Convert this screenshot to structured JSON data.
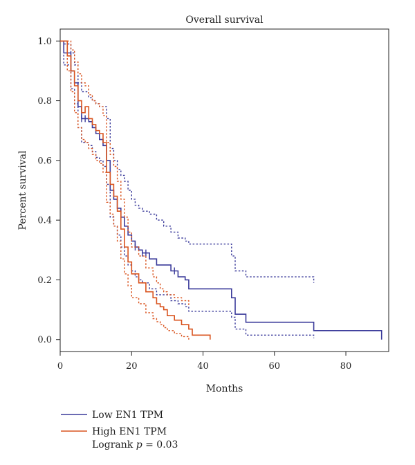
{
  "chart_data": {
    "type": "line",
    "subtype": "kaplan-meier",
    "title": "Overall survival",
    "xlabel": "Months",
    "ylabel": "Percent survival",
    "xlim": [
      0,
      92
    ],
    "ylim": [
      -0.04,
      1.04
    ],
    "xticks": [
      0,
      20,
      40,
      60,
      80
    ],
    "yticks": [
      0.0,
      0.2,
      0.4,
      0.6,
      0.8,
      1.0
    ],
    "xtick_labels": [
      "0",
      "20",
      "40",
      "60",
      "80"
    ],
    "ytick_labels": [
      "0.0",
      "0.2",
      "0.4",
      "0.6",
      "0.8",
      "1.0"
    ],
    "grid": false,
    "legend_position": "bottom-left",
    "annotation": {
      "prefix": "Logrank ",
      "italic": "p",
      "suffix": " = 0.03"
    },
    "series": [
      {
        "name": "Low EN1 TPM",
        "color": "#3a3a9a",
        "steps": [
          [
            0,
            1.0
          ],
          [
            1,
            0.96
          ],
          [
            3,
            0.9
          ],
          [
            4,
            0.86
          ],
          [
            5,
            0.78
          ],
          [
            6,
            0.74
          ],
          [
            8,
            0.73
          ],
          [
            9,
            0.71
          ],
          [
            10,
            0.69
          ],
          [
            11,
            0.67
          ],
          [
            12,
            0.65
          ],
          [
            13,
            0.6
          ],
          [
            14,
            0.5
          ],
          [
            15,
            0.47
          ],
          [
            16,
            0.44
          ],
          [
            17,
            0.41
          ],
          [
            18,
            0.38
          ],
          [
            19,
            0.35
          ],
          [
            20,
            0.33
          ],
          [
            21,
            0.31
          ],
          [
            22,
            0.3
          ],
          [
            23,
            0.29
          ],
          [
            25,
            0.27
          ],
          [
            27,
            0.25
          ],
          [
            29,
            0.25
          ],
          [
            31,
            0.23
          ],
          [
            33,
            0.21
          ],
          [
            35,
            0.2
          ],
          [
            36,
            0.17
          ],
          [
            48,
            0.14
          ],
          [
            49,
            0.085
          ],
          [
            52,
            0.058
          ],
          [
            71,
            0.03
          ],
          [
            90,
            0.0
          ]
        ],
        "censor_x": [
          6,
          7,
          21,
          23,
          24,
          32
        ],
        "ci_upper": [
          [
            0,
            1.0
          ],
          [
            1,
            0.99
          ],
          [
            3,
            0.96
          ],
          [
            4,
            0.92
          ],
          [
            5,
            0.86
          ],
          [
            6,
            0.83
          ],
          [
            8,
            0.81
          ],
          [
            9,
            0.8
          ],
          [
            10,
            0.79
          ],
          [
            11,
            0.78
          ],
          [
            12,
            0.78
          ],
          [
            13,
            0.74
          ],
          [
            14,
            0.64
          ],
          [
            15,
            0.6
          ],
          [
            16,
            0.57
          ],
          [
            17,
            0.55
          ],
          [
            18,
            0.53
          ],
          [
            19,
            0.5
          ],
          [
            20,
            0.47
          ],
          [
            21,
            0.45
          ],
          [
            22,
            0.44
          ],
          [
            23,
            0.43
          ],
          [
            25,
            0.42
          ],
          [
            27,
            0.4
          ],
          [
            29,
            0.38
          ],
          [
            31,
            0.36
          ],
          [
            33,
            0.34
          ],
          [
            35,
            0.33
          ],
          [
            36,
            0.32
          ],
          [
            48,
            0.28
          ],
          [
            49,
            0.23
          ],
          [
            52,
            0.21
          ],
          [
            71,
            0.19
          ]
        ],
        "ci_lower": [
          [
            0,
            1.0
          ],
          [
            1,
            0.92
          ],
          [
            3,
            0.84
          ],
          [
            4,
            0.79
          ],
          [
            5,
            0.71
          ],
          [
            6,
            0.66
          ],
          [
            8,
            0.65
          ],
          [
            9,
            0.63
          ],
          [
            10,
            0.61
          ],
          [
            11,
            0.6
          ],
          [
            12,
            0.58
          ],
          [
            13,
            0.52
          ],
          [
            14,
            0.41
          ],
          [
            15,
            0.38
          ],
          [
            16,
            0.35
          ],
          [
            17,
            0.31
          ],
          [
            18,
            0.28
          ],
          [
            19,
            0.25
          ],
          [
            20,
            0.23
          ],
          [
            21,
            0.21
          ],
          [
            22,
            0.2
          ],
          [
            23,
            0.19
          ],
          [
            25,
            0.17
          ],
          [
            27,
            0.15
          ],
          [
            29,
            0.15
          ],
          [
            31,
            0.13
          ],
          [
            33,
            0.12
          ],
          [
            35,
            0.11
          ],
          [
            36,
            0.095
          ],
          [
            48,
            0.075
          ],
          [
            49,
            0.035
          ],
          [
            52,
            0.015
          ],
          [
            71,
            0.005
          ]
        ]
      },
      {
        "name": "High EN1 TPM",
        "color": "#d9531e",
        "steps": [
          [
            0,
            1.0
          ],
          [
            2,
            0.95
          ],
          [
            3,
            0.9
          ],
          [
            4,
            0.85
          ],
          [
            5,
            0.8
          ],
          [
            6,
            0.76
          ],
          [
            7,
            0.78
          ],
          [
            8,
            0.74
          ],
          [
            9,
            0.72
          ],
          [
            10,
            0.7
          ],
          [
            11,
            0.69
          ],
          [
            12,
            0.66
          ],
          [
            13,
            0.56
          ],
          [
            14,
            0.52
          ],
          [
            15,
            0.48
          ],
          [
            16,
            0.43
          ],
          [
            17,
            0.37
          ],
          [
            18,
            0.31
          ],
          [
            19,
            0.26
          ],
          [
            20,
            0.22
          ],
          [
            22,
            0.19
          ],
          [
            24,
            0.16
          ],
          [
            26,
            0.14
          ],
          [
            27,
            0.12
          ],
          [
            28,
            0.11
          ],
          [
            29,
            0.1
          ],
          [
            30,
            0.08
          ],
          [
            32,
            0.065
          ],
          [
            34,
            0.05
          ],
          [
            36,
            0.035
          ],
          [
            37,
            0.015
          ],
          [
            42,
            0.0
          ]
        ],
        "ci_upper": [
          [
            0,
            1.0
          ],
          [
            2,
            1.0
          ],
          [
            3,
            0.97
          ],
          [
            4,
            0.93
          ],
          [
            5,
            0.89
          ],
          [
            6,
            0.86
          ],
          [
            7,
            0.85
          ],
          [
            8,
            0.82
          ],
          [
            9,
            0.8
          ],
          [
            10,
            0.79
          ],
          [
            11,
            0.78
          ],
          [
            12,
            0.75
          ],
          [
            13,
            0.66
          ],
          [
            14,
            0.62
          ],
          [
            15,
            0.58
          ],
          [
            16,
            0.53
          ],
          [
            17,
            0.47
          ],
          [
            18,
            0.41
          ],
          [
            19,
            0.36
          ],
          [
            20,
            0.31
          ],
          [
            22,
            0.28
          ],
          [
            24,
            0.24
          ],
          [
            26,
            0.21
          ],
          [
            27,
            0.19
          ],
          [
            28,
            0.17
          ],
          [
            29,
            0.16
          ],
          [
            30,
            0.15
          ],
          [
            32,
            0.14
          ],
          [
            34,
            0.13
          ],
          [
            36,
            0.11
          ]
        ],
        "ci_lower": [
          [
            0,
            1.0
          ],
          [
            2,
            0.9
          ],
          [
            3,
            0.83
          ],
          [
            4,
            0.76
          ],
          [
            5,
            0.71
          ],
          [
            6,
            0.67
          ],
          [
            7,
            0.66
          ],
          [
            8,
            0.64
          ],
          [
            9,
            0.62
          ],
          [
            10,
            0.6
          ],
          [
            11,
            0.59
          ],
          [
            12,
            0.56
          ],
          [
            13,
            0.46
          ],
          [
            14,
            0.42
          ],
          [
            15,
            0.38
          ],
          [
            16,
            0.33
          ],
          [
            17,
            0.27
          ],
          [
            18,
            0.22
          ],
          [
            19,
            0.18
          ],
          [
            20,
            0.14
          ],
          [
            22,
            0.12
          ],
          [
            24,
            0.09
          ],
          [
            26,
            0.07
          ],
          [
            27,
            0.06
          ],
          [
            28,
            0.05
          ],
          [
            29,
            0.04
          ],
          [
            30,
            0.03
          ],
          [
            32,
            0.02
          ],
          [
            34,
            0.01
          ],
          [
            36,
            0.0
          ]
        ]
      }
    ]
  }
}
